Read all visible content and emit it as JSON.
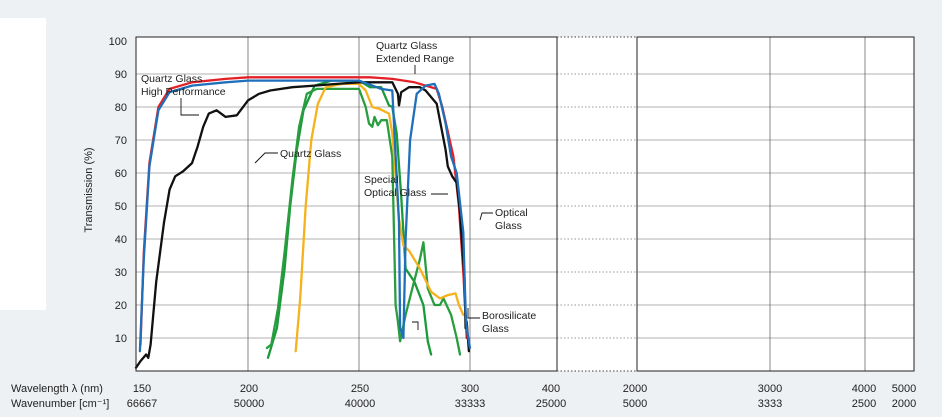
{
  "chart_data": {
    "type": "line",
    "ylabel": "Transmission (%)",
    "ylim": [
      0,
      100
    ],
    "y_ticks": [
      "10",
      "20",
      "30",
      "40",
      "50",
      "60",
      "70",
      "80",
      "90",
      "100"
    ],
    "grid": true,
    "x_axis": {
      "wavelength_label": "Wavelength  λ (nm)",
      "wavenumber_label": "Wavenumber  [cm⁻¹]",
      "note": "broken axis: 150–400 nm, 400–2000 nm gap, 2000–5000 nm",
      "ticks": [
        {
          "wavelength": "150",
          "wavenumber": "66667"
        },
        {
          "wavelength": "200",
          "wavenumber": "50000"
        },
        {
          "wavelength": "250",
          "wavenumber": "40000"
        },
        {
          "wavelength": "300",
          "wavenumber": "33333"
        },
        {
          "wavelength": "400",
          "wavenumber": "25000"
        },
        {
          "wavelength": "2000",
          "wavenumber": "5000"
        },
        {
          "wavelength": "3000",
          "wavenumber": "3333"
        },
        {
          "wavelength": "4000",
          "wavenumber": "2500"
        },
        {
          "wavelength": "5000",
          "wavenumber": "2000"
        }
      ]
    },
    "annotations": [
      {
        "id": "quartz-ext",
        "lines": [
          "Quartz Glass",
          "Extended Range"
        ]
      },
      {
        "id": "quartz-hp",
        "lines": [
          "Quartz Glass",
          "High Performance"
        ]
      },
      {
        "id": "quartz",
        "lines": [
          "Quartz Glass"
        ]
      },
      {
        "id": "special",
        "lines": [
          "Special",
          "Optical Glass"
        ]
      },
      {
        "id": "optical",
        "lines": [
          "Optical",
          "Glass"
        ]
      },
      {
        "id": "borosilicate",
        "lines": [
          "Borosilicate",
          "Glass"
        ]
      }
    ],
    "series": [
      {
        "id": "quartz-extended-range",
        "color": "#e32228",
        "points": [
          [
            0.04,
            8
          ],
          [
            0.07,
            36
          ],
          [
            0.12,
            63
          ],
          [
            0.2,
            80
          ],
          [
            0.3,
            85.5
          ],
          [
            0.5,
            87.5
          ],
          [
            0.8,
            88.5
          ],
          [
            1.0,
            89
          ],
          [
            1.2,
            89
          ],
          [
            1.5,
            89
          ],
          [
            1.8,
            89
          ],
          [
            2.0,
            89
          ],
          [
            2.1,
            89
          ],
          [
            2.3,
            88.5
          ],
          [
            2.5,
            87.5
          ],
          [
            2.7,
            85.5
          ],
          [
            2.75,
            80
          ],
          [
            2.85,
            65
          ],
          [
            2.9,
            50
          ],
          [
            2.94,
            30
          ],
          [
            2.97,
            10
          ]
        ]
      },
      {
        "id": "quartz-high-performance",
        "color": "#1f6fba",
        "points": [
          [
            0.035,
            6
          ],
          [
            0.07,
            34
          ],
          [
            0.12,
            62
          ],
          [
            0.2,
            79
          ],
          [
            0.3,
            84.5
          ],
          [
            0.5,
            86.5
          ],
          [
            0.8,
            87.5
          ],
          [
            1.0,
            88
          ],
          [
            1.2,
            88
          ],
          [
            1.5,
            88
          ],
          [
            1.8,
            88
          ],
          [
            2.0,
            88
          ],
          [
            2.2,
            85.5
          ],
          [
            2.3,
            85
          ],
          [
            2.36,
            45
          ],
          [
            2.37,
            13
          ],
          [
            2.4,
            10
          ],
          [
            2.42,
            40
          ],
          [
            2.46,
            70
          ],
          [
            2.52,
            84
          ],
          [
            2.6,
            86.5
          ],
          [
            2.68,
            87
          ],
          [
            2.72,
            84
          ],
          [
            2.78,
            75
          ],
          [
            2.83,
            65
          ],
          [
            2.88,
            60
          ],
          [
            2.92,
            48
          ],
          [
            2.94,
            42
          ],
          [
            2.96,
            18
          ],
          [
            2.97,
            13
          ],
          [
            2.985,
            10
          ],
          [
            3.0,
            7
          ]
        ]
      },
      {
        "id": "quartz-glass",
        "color": "#111111",
        "points": [
          [
            0.0,
            1
          ],
          [
            0.04,
            3
          ],
          [
            0.09,
            5
          ],
          [
            0.11,
            4
          ],
          [
            0.13,
            8
          ],
          [
            0.18,
            27
          ],
          [
            0.25,
            45
          ],
          [
            0.3,
            55
          ],
          [
            0.35,
            59
          ],
          [
            0.42,
            60.5
          ],
          [
            0.5,
            63
          ],
          [
            0.55,
            68
          ],
          [
            0.6,
            74
          ],
          [
            0.65,
            78
          ],
          [
            0.72,
            79
          ],
          [
            0.8,
            77
          ],
          [
            0.9,
            77.5
          ],
          [
            1.0,
            82
          ],
          [
            1.1,
            84
          ],
          [
            1.2,
            85
          ],
          [
            1.4,
            86
          ],
          [
            1.6,
            86.5
          ],
          [
            1.8,
            87
          ],
          [
            2.0,
            87.5
          ],
          [
            2.3,
            87.5
          ],
          [
            2.35,
            84
          ],
          [
            2.36,
            80.5
          ],
          [
            2.38,
            84.5
          ],
          [
            2.45,
            86
          ],
          [
            2.55,
            86
          ],
          [
            2.6,
            85
          ],
          [
            2.7,
            81
          ],
          [
            2.78,
            67
          ],
          [
            2.8,
            62
          ],
          [
            2.84,
            59
          ],
          [
            2.88,
            57
          ],
          [
            2.91,
            48
          ],
          [
            2.93,
            38
          ],
          [
            2.95,
            28
          ],
          [
            2.96,
            13
          ],
          [
            2.97,
            15
          ],
          [
            2.99,
            6
          ]
        ]
      },
      {
        "id": "special-optical-glass",
        "color": "#1a9a3a",
        "points": [
          [
            1.18,
            4
          ],
          [
            1.26,
            13
          ],
          [
            1.33,
            31
          ],
          [
            1.38,
            50
          ],
          [
            1.44,
            67
          ],
          [
            1.5,
            79
          ],
          [
            1.6,
            86.5
          ],
          [
            1.75,
            88
          ],
          [
            2.0,
            88
          ],
          [
            2.1,
            86
          ],
          [
            2.2,
            86
          ],
          [
            2.27,
            80.5
          ],
          [
            2.3,
            80
          ],
          [
            2.34,
            72
          ],
          [
            2.38,
            53
          ],
          [
            2.42,
            31
          ],
          [
            2.5,
            27
          ],
          [
            2.58,
            20
          ],
          [
            2.62,
            9
          ],
          [
            2.65,
            5
          ]
        ]
      },
      {
        "id": "borosilicate-glass",
        "color": "#2a9d3f",
        "points": [
          [
            1.17,
            7
          ],
          [
            1.21,
            8
          ],
          [
            1.27,
            19
          ],
          [
            1.33,
            36
          ],
          [
            1.4,
            58
          ],
          [
            1.46,
            74
          ],
          [
            1.53,
            84
          ],
          [
            1.62,
            85.5
          ],
          [
            1.8,
            85.5
          ],
          [
            2.0,
            85.5
          ],
          [
            2.06,
            80
          ],
          [
            2.09,
            75
          ],
          [
            2.12,
            74
          ],
          [
            2.14,
            77
          ],
          [
            2.17,
            74.5
          ],
          [
            2.2,
            76
          ],
          [
            2.25,
            76
          ],
          [
            2.3,
            65
          ],
          [
            2.33,
            20
          ],
          [
            2.35,
            15
          ],
          [
            2.37,
            9
          ],
          [
            2.42,
            17
          ],
          [
            2.48,
            25
          ],
          [
            2.55,
            34
          ],
          [
            2.58,
            39
          ],
          [
            2.62,
            25
          ],
          [
            2.68,
            20
          ],
          [
            2.73,
            20
          ],
          [
            2.76,
            22
          ],
          [
            2.83,
            17
          ],
          [
            2.88,
            10
          ],
          [
            2.91,
            5
          ]
        ]
      },
      {
        "id": "optical-glass",
        "color": "#f6b21c",
        "points": [
          [
            1.43,
            6
          ],
          [
            1.47,
            22
          ],
          [
            1.52,
            50
          ],
          [
            1.57,
            70
          ],
          [
            1.63,
            81
          ],
          [
            1.7,
            86
          ],
          [
            1.85,
            87
          ],
          [
            2.0,
            87
          ],
          [
            2.06,
            85
          ],
          [
            2.12,
            80
          ],
          [
            2.18,
            79.5
          ],
          [
            2.27,
            78
          ],
          [
            2.3,
            72
          ],
          [
            2.36,
            46
          ],
          [
            2.4,
            38
          ],
          [
            2.45,
            36.5
          ],
          [
            2.55,
            31
          ],
          [
            2.65,
            24
          ],
          [
            2.73,
            22
          ],
          [
            2.8,
            23
          ],
          [
            2.87,
            23.5
          ],
          [
            2.9,
            20
          ],
          [
            2.94,
            17
          ]
        ]
      }
    ]
  }
}
